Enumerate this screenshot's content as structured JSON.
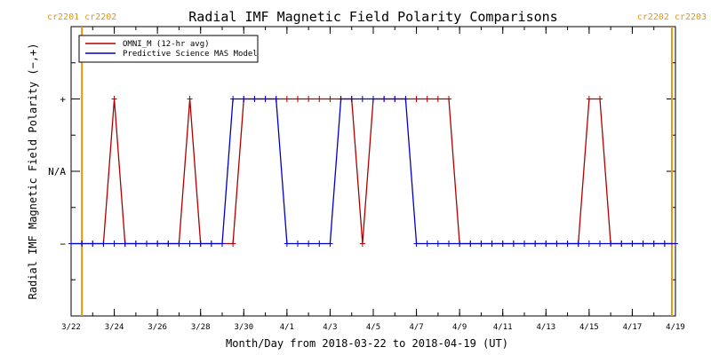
{
  "chart_data": {
    "type": "line",
    "title": "Radial IMF Magnetic Field Polarity Comparisons",
    "xlabel": "Month/Day from 2018-03-22 to 2018-04-19 (UT)",
    "ylabel": "Radial IMF Magnetic Field Polarity (−,+)",
    "xlim": [
      "2018-03-22",
      "2018-04-19"
    ],
    "x_tick_labels": [
      "3/22",
      "3/24",
      "3/26",
      "3/28",
      "3/30",
      "4/1",
      "4/3",
      "4/5",
      "4/7",
      "4/9",
      "4/11",
      "4/13",
      "4/15",
      "4/17",
      "4/19"
    ],
    "x_tick_dates": [
      "2018-03-22",
      "2018-03-24",
      "2018-03-26",
      "2018-03-28",
      "2018-03-30",
      "2018-04-01",
      "2018-04-03",
      "2018-04-05",
      "2018-04-07",
      "2018-04-09",
      "2018-04-11",
      "2018-04-13",
      "2018-04-15",
      "2018-04-17",
      "2018-04-19"
    ],
    "y_tick_labels": [
      "−",
      "N/A",
      "+"
    ],
    "y_tick_values": [
      -1,
      0,
      1
    ],
    "ylim": [
      -2,
      2
    ],
    "grid": false,
    "legend_position": "top-left",
    "carrington_markers": [
      {
        "date": "2018-03-22T12:00",
        "label": "cr2201 cr2202"
      },
      {
        "date": "2018-04-18T20:00",
        "label": "cr2202 cr2203"
      }
    ],
    "series": [
      {
        "name": "OMNI_M (12-hr avg)",
        "color": "#b00000",
        "marker": "+",
        "points": [
          [
            "2018-03-22T00:00",
            -1
          ],
          [
            "2018-03-22T12:00",
            -1
          ],
          [
            "2018-03-23T00:00",
            -1
          ],
          [
            "2018-03-23T12:00",
            -1
          ],
          [
            "2018-03-24T00:00",
            1
          ],
          [
            "2018-03-24T12:00",
            -1
          ],
          [
            "2018-03-25T00:00",
            -1
          ],
          [
            "2018-03-25T12:00",
            -1
          ],
          [
            "2018-03-26T00:00",
            -1
          ],
          [
            "2018-03-26T12:00",
            -1
          ],
          [
            "2018-03-27T00:00",
            -1
          ],
          [
            "2018-03-27T12:00",
            1
          ],
          [
            "2018-03-28T00:00",
            -1
          ],
          [
            "2018-03-28T12:00",
            -1
          ],
          [
            "2018-03-29T00:00",
            -1
          ],
          [
            "2018-03-29T12:00",
            -1
          ],
          [
            "2018-03-30T00:00",
            1
          ],
          [
            "2018-03-30T12:00",
            1
          ],
          [
            "2018-03-31T00:00",
            1
          ],
          [
            "2018-03-31T12:00",
            1
          ],
          [
            "2018-04-01T00:00",
            1
          ],
          [
            "2018-04-01T12:00",
            1
          ],
          [
            "2018-04-02T00:00",
            1
          ],
          [
            "2018-04-02T12:00",
            1
          ],
          [
            "2018-04-03T00:00",
            1
          ],
          [
            "2018-04-03T12:00",
            1
          ],
          [
            "2018-04-04T00:00",
            1
          ],
          [
            "2018-04-04T12:00",
            -1
          ],
          [
            "2018-04-05T00:00",
            1
          ],
          [
            "2018-04-05T12:00",
            1
          ],
          [
            "2018-04-06T00:00",
            1
          ],
          [
            "2018-04-06T12:00",
            1
          ],
          [
            "2018-04-07T00:00",
            1
          ],
          [
            "2018-04-07T12:00",
            1
          ],
          [
            "2018-04-08T00:00",
            1
          ],
          [
            "2018-04-08T12:00",
            1
          ],
          [
            "2018-04-09T00:00",
            -1
          ],
          [
            "2018-04-09T12:00",
            -1
          ],
          [
            "2018-04-10T00:00",
            -1
          ],
          [
            "2018-04-10T12:00",
            -1
          ],
          [
            "2018-04-11T00:00",
            -1
          ],
          [
            "2018-04-11T12:00",
            -1
          ],
          [
            "2018-04-12T00:00",
            -1
          ],
          [
            "2018-04-12T12:00",
            -1
          ],
          [
            "2018-04-13T00:00",
            -1
          ],
          [
            "2018-04-13T12:00",
            -1
          ],
          [
            "2018-04-14T00:00",
            -1
          ],
          [
            "2018-04-14T12:00",
            -1
          ],
          [
            "2018-04-15T00:00",
            1
          ],
          [
            "2018-04-15T12:00",
            1
          ],
          [
            "2018-04-16T00:00",
            -1
          ],
          [
            "2018-04-16T12:00",
            -1
          ],
          [
            "2018-04-17T00:00",
            -1
          ],
          [
            "2018-04-17T12:00",
            -1
          ],
          [
            "2018-04-18T00:00",
            -1
          ],
          [
            "2018-04-18T12:00",
            -1
          ],
          [
            "2018-04-19T00:00",
            -1
          ]
        ]
      },
      {
        "name": "Predictive Science MAS Model",
        "color": "#0000c8",
        "marker": "+",
        "points": [
          [
            "2018-03-22T00:00",
            -1
          ],
          [
            "2018-03-22T12:00",
            -1
          ],
          [
            "2018-03-23T00:00",
            -1
          ],
          [
            "2018-03-23T12:00",
            -1
          ],
          [
            "2018-03-24T00:00",
            -1
          ],
          [
            "2018-03-24T12:00",
            -1
          ],
          [
            "2018-03-25T00:00",
            -1
          ],
          [
            "2018-03-25T12:00",
            -1
          ],
          [
            "2018-03-26T00:00",
            -1
          ],
          [
            "2018-03-26T12:00",
            -1
          ],
          [
            "2018-03-27T00:00",
            -1
          ],
          [
            "2018-03-27T12:00",
            -1
          ],
          [
            "2018-03-28T00:00",
            -1
          ],
          [
            "2018-03-28T12:00",
            -1
          ],
          [
            "2018-03-29T00:00",
            -1
          ],
          [
            "2018-03-29T12:00",
            1
          ],
          [
            "2018-03-30T00:00",
            1
          ],
          [
            "2018-03-30T12:00",
            1
          ],
          [
            "2018-03-31T00:00",
            1
          ],
          [
            "2018-03-31T12:00",
            1
          ],
          [
            "2018-04-01T00:00",
            -1
          ],
          [
            "2018-04-01T12:00",
            -1
          ],
          [
            "2018-04-02T00:00",
            -1
          ],
          [
            "2018-04-02T12:00",
            -1
          ],
          [
            "2018-04-03T00:00",
            -1
          ],
          [
            "2018-04-03T12:00",
            1
          ],
          [
            "2018-04-04T00:00",
            1
          ],
          [
            "2018-04-04T12:00",
            1
          ],
          [
            "2018-04-05T00:00",
            1
          ],
          [
            "2018-04-05T12:00",
            1
          ],
          [
            "2018-04-06T00:00",
            1
          ],
          [
            "2018-04-06T12:00",
            1
          ],
          [
            "2018-04-07T00:00",
            -1
          ],
          [
            "2018-04-07T12:00",
            -1
          ],
          [
            "2018-04-08T00:00",
            -1
          ],
          [
            "2018-04-08T12:00",
            -1
          ],
          [
            "2018-04-09T00:00",
            -1
          ],
          [
            "2018-04-09T12:00",
            -1
          ],
          [
            "2018-04-10T00:00",
            -1
          ],
          [
            "2018-04-10T12:00",
            -1
          ],
          [
            "2018-04-11T00:00",
            -1
          ],
          [
            "2018-04-11T12:00",
            -1
          ],
          [
            "2018-04-12T00:00",
            -1
          ],
          [
            "2018-04-12T12:00",
            -1
          ],
          [
            "2018-04-13T00:00",
            -1
          ],
          [
            "2018-04-13T12:00",
            -1
          ],
          [
            "2018-04-14T00:00",
            -1
          ],
          [
            "2018-04-14T12:00",
            -1
          ],
          [
            "2018-04-15T00:00",
            -1
          ],
          [
            "2018-04-15T12:00",
            -1
          ],
          [
            "2018-04-16T00:00",
            -1
          ],
          [
            "2018-04-16T12:00",
            -1
          ],
          [
            "2018-04-17T00:00",
            -1
          ],
          [
            "2018-04-17T12:00",
            -1
          ],
          [
            "2018-04-18T00:00",
            -1
          ],
          [
            "2018-04-18T12:00",
            -1
          ],
          [
            "2018-04-19T00:00",
            -1
          ]
        ]
      }
    ]
  }
}
